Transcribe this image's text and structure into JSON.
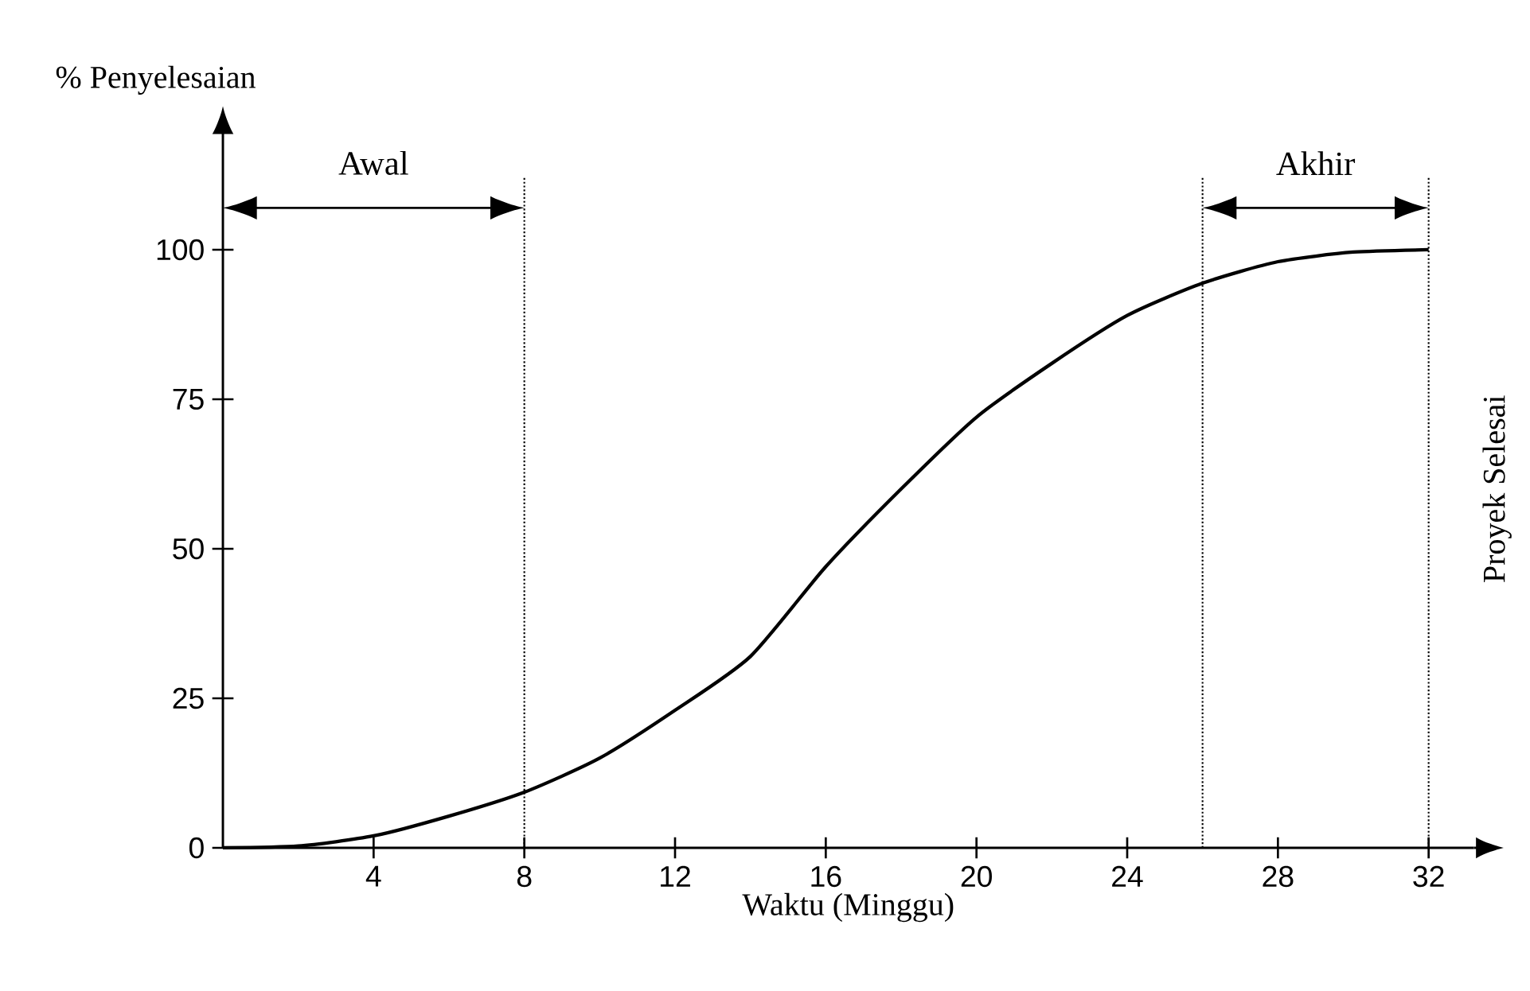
{
  "chart_data": {
    "type": "line",
    "xlabel": "Waktu (Minggu)",
    "ylabel": "% Penyelesaian",
    "x": [
      0,
      2,
      4,
      6,
      8,
      10,
      12,
      14,
      16,
      18,
      20,
      22,
      24,
      26,
      28,
      30,
      32
    ],
    "series": [
      {
        "color": "#000000",
        "values": [
          0,
          0.3,
          2,
          5.3,
          9.3,
          15,
          23,
          32,
          47,
          60,
          72,
          81,
          89,
          94.4,
          98,
          99.6,
          100
        ]
      }
    ],
    "xlim": [
      0,
      33.2
    ],
    "ylim": [
      0,
      119
    ],
    "xticks": [
      4,
      8,
      12,
      16,
      20,
      24,
      28,
      32
    ],
    "yticks": [
      0,
      25,
      50,
      75,
      100
    ],
    "ref_lines": [
      {
        "axis": "x",
        "value": 8,
        "line_style": "dotted"
      },
      {
        "axis": "x",
        "value": 26,
        "line_style": "dotted"
      },
      {
        "axis": "x",
        "value": 32,
        "label": "Proyek Selesai",
        "line_style": "dotted"
      }
    ],
    "annotations": [
      "Awal",
      "Akhir"
    ]
  }
}
